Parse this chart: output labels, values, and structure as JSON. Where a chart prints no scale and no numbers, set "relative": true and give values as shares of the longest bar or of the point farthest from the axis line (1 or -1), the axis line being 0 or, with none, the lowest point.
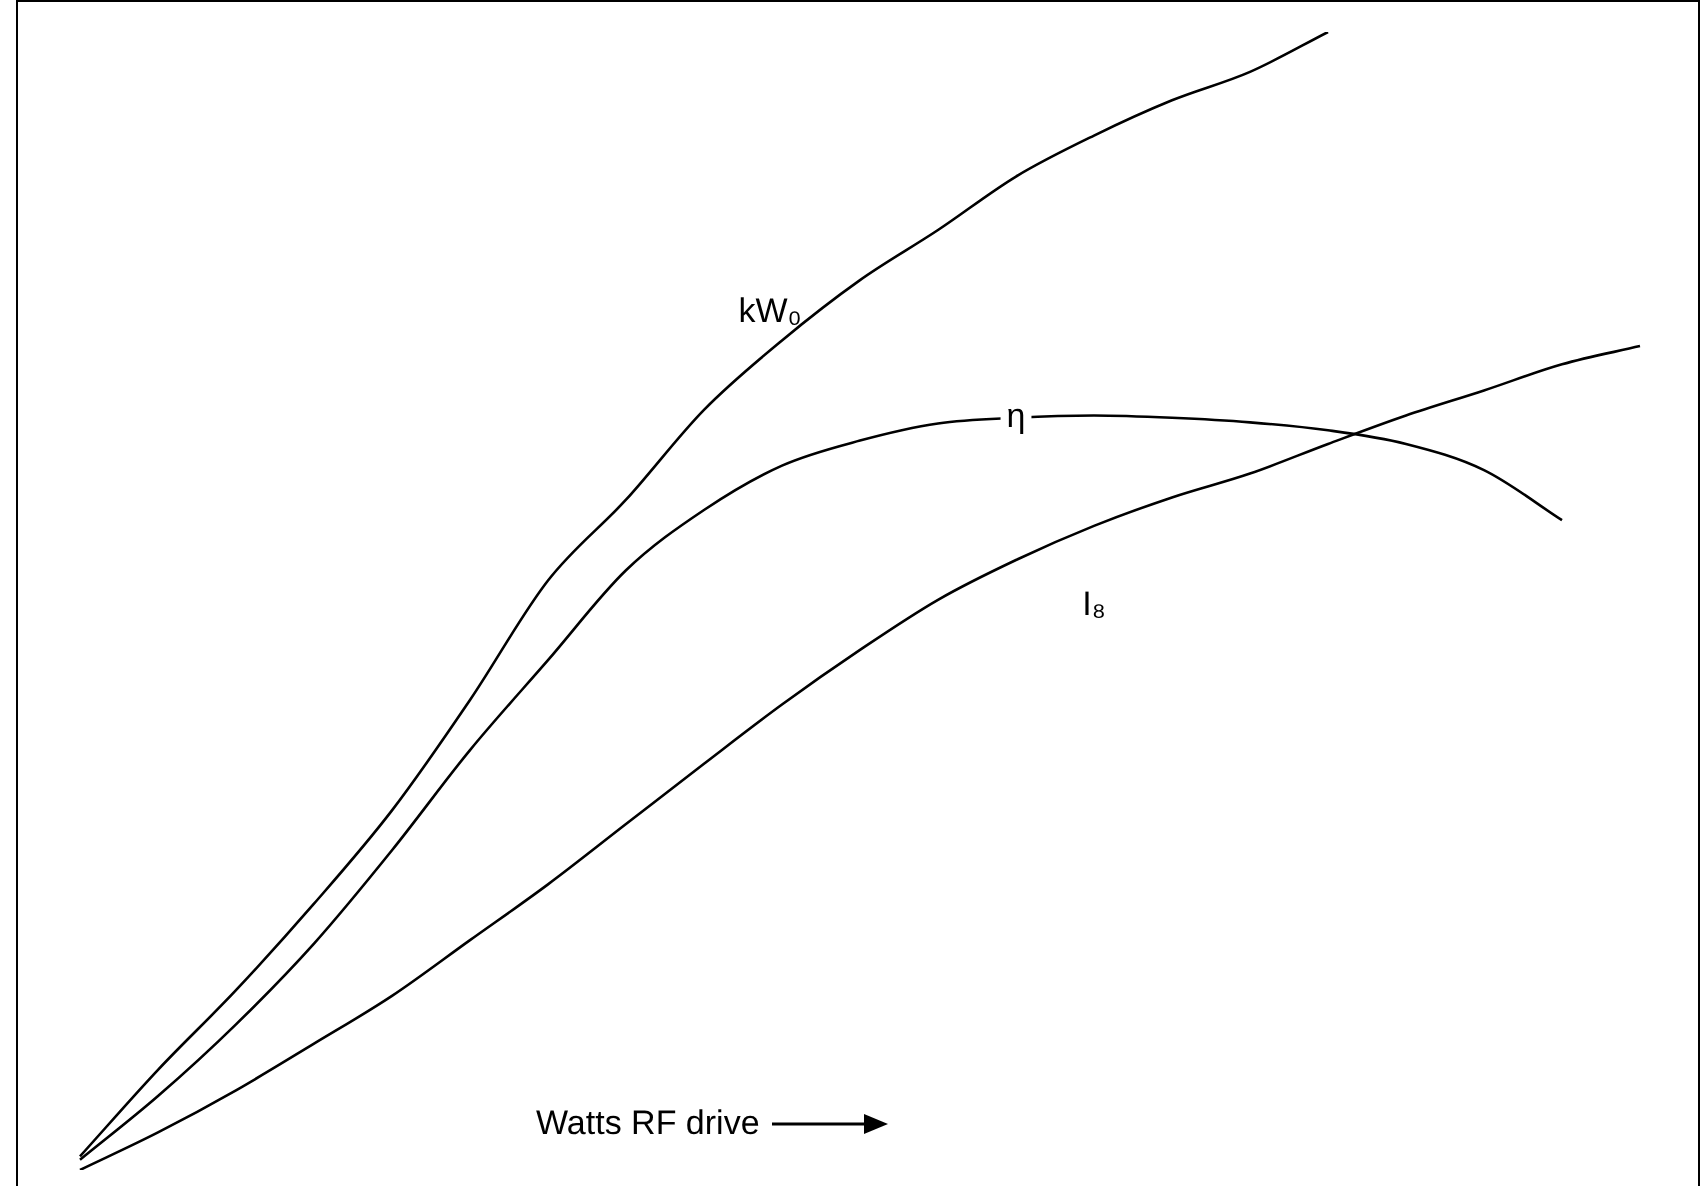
{
  "chart_data": {
    "type": "line",
    "relative": true,
    "xlabel": "Watts RF drive",
    "categories": [
      null,
      null,
      null,
      null,
      null,
      null,
      null,
      null,
      null,
      null,
      null,
      null,
      null,
      null,
      null,
      null,
      null,
      null,
      null,
      null,
      null
    ],
    "series": [
      {
        "name": "kW₀",
        "color": "#000000",
        "values": [
          0.012,
          0.088,
          0.158,
          0.234,
          0.316,
          0.413,
          0.518,
          0.589,
          0.668,
          0.729,
          0.782,
          0.826,
          0.873,
          0.909,
          0.94,
          0.965,
          1.0,
          null,
          null,
          null,
          null
        ]
      },
      {
        "name": "η",
        "color": "#000000",
        "values": [
          0.009,
          0.065,
          0.128,
          0.199,
          0.281,
          0.369,
          0.448,
          0.527,
          0.58,
          0.619,
          0.641,
          0.656,
          0.661,
          0.663,
          0.661,
          0.657,
          0.65,
          0.638,
          0.615,
          0.571,
          null
        ]
      },
      {
        "name": "I₈",
        "color": "#000000",
        "values": [
          0,
          0.033,
          0.07,
          0.111,
          0.153,
          0.202,
          0.251,
          0.304,
          0.357,
          0.409,
          0.457,
          0.501,
          0.536,
          0.566,
          0.591,
          0.612,
          0.638,
          0.663,
          0.685,
          0.708,
          0.724
        ]
      }
    ]
  }
}
